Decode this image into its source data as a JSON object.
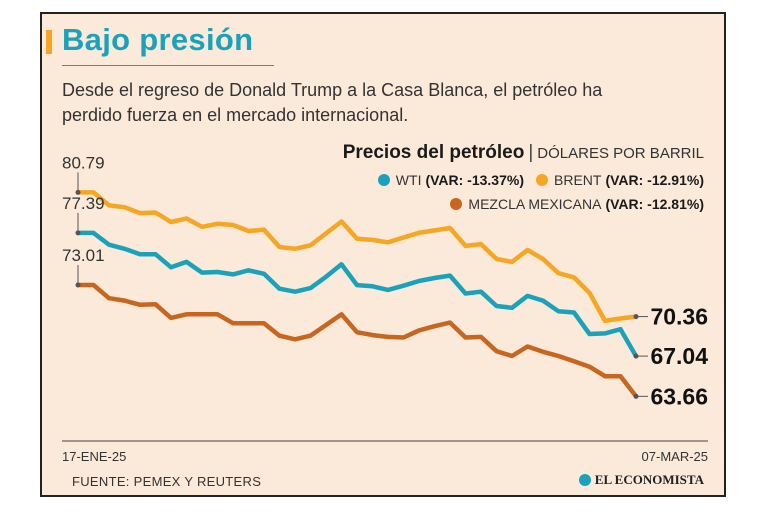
{
  "header": {
    "title": "Bajo presión",
    "subtitle": "Desde el regreso de Donald Trump a la Casa Blanca, el petróleo ha perdido fuerza en el mercado internacional."
  },
  "chart_heading": {
    "title": "Precios del petróleo",
    "separator": "|",
    "unit": "DÓLARES POR BARRIL"
  },
  "legend": {
    "wti": {
      "name": "WTI",
      "var": "(VAR: -13.37%)",
      "color": "#1aa2ba"
    },
    "brent": {
      "name": "BRENT",
      "var": "(VAR: -12.91%)",
      "color": "#f5a623"
    },
    "mezcla": {
      "name": "MEZCLA MEXICANA",
      "var": "(VAR: -12.81%)",
      "color": "#c8651f"
    }
  },
  "footer": {
    "source": "FUENTE: PEMEX Y REUTERS",
    "brand": "EL ECONOMISTA"
  },
  "chart_data": {
    "type": "line",
    "title": "Precios del petróleo",
    "ylabel": "DÓLARES POR BARRIL",
    "x_start_label": "17-ENE-25",
    "x_end_label": "07-MAR-25",
    "ylim": [
      61,
      82
    ],
    "series": [
      {
        "name": "BRENT",
        "color": "#f5a623",
        "start_label": "80.79",
        "end_label": "70.36",
        "values": [
          80.79,
          80.79,
          79.7,
          79.55,
          79.05,
          79.1,
          78.3,
          78.6,
          77.9,
          78.15,
          78.05,
          77.55,
          77.65,
          76.2,
          76.05,
          76.35,
          77.35,
          78.35,
          76.9,
          76.8,
          76.6,
          77.0,
          77.4,
          77.6,
          77.8,
          76.3,
          76.45,
          75.2,
          74.95,
          75.95,
          75.2,
          74.0,
          73.65,
          72.35,
          70.0,
          70.2,
          70.36
        ]
      },
      {
        "name": "WTI",
        "color": "#1aa2ba",
        "start_label": "77.39",
        "end_label": "67.04",
        "values": [
          77.39,
          77.39,
          76.4,
          76.05,
          75.6,
          75.6,
          74.5,
          74.95,
          74.05,
          74.1,
          73.9,
          74.25,
          73.95,
          72.7,
          72.45,
          72.75,
          73.7,
          74.75,
          73.0,
          72.9,
          72.6,
          72.95,
          73.35,
          73.6,
          73.8,
          72.3,
          72.45,
          71.25,
          71.1,
          72.1,
          71.7,
          70.8,
          70.7,
          68.9,
          68.95,
          69.3,
          67.04
        ]
      },
      {
        "name": "MEZCLA MEXICANA",
        "color": "#c8651f",
        "start_label": "73.01",
        "end_label": "63.66",
        "values": [
          73.01,
          73.01,
          71.9,
          71.7,
          71.35,
          71.4,
          70.25,
          70.55,
          70.55,
          70.55,
          69.8,
          69.8,
          69.8,
          68.75,
          68.45,
          68.75,
          69.65,
          70.55,
          69.05,
          68.8,
          68.65,
          68.6,
          69.2,
          69.55,
          69.85,
          68.6,
          68.65,
          67.45,
          67.05,
          67.85,
          67.4,
          67.05,
          66.6,
          66.15,
          65.35,
          65.35,
          63.66
        ]
      }
    ]
  }
}
